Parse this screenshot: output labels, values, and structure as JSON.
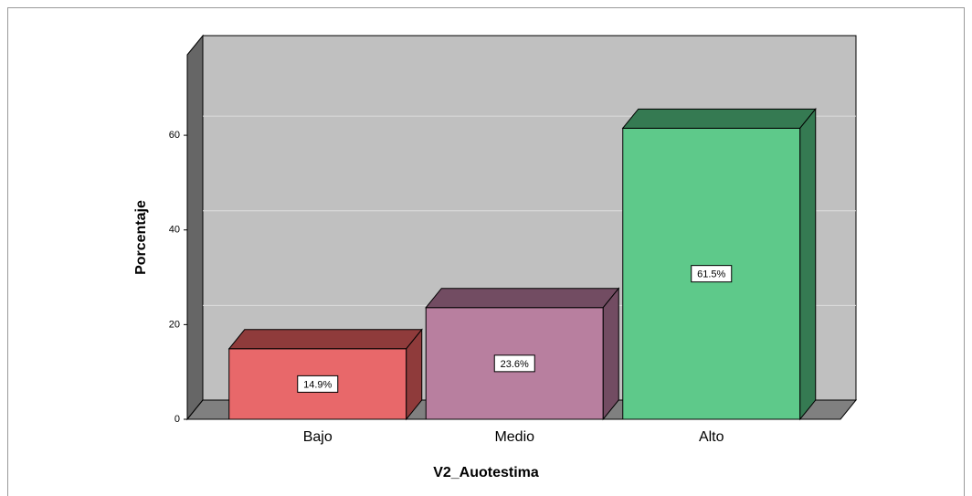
{
  "chart_data": {
    "type": "bar3d",
    "x_label": "V2_Auotestima",
    "y_label": "Porcentaje",
    "categories": [
      "Bajo",
      "Medio",
      "Alto"
    ],
    "values": [
      14.9,
      23.6,
      61.5
    ],
    "value_labels": [
      "14.9%",
      "23.6%",
      "61.5%"
    ],
    "colors": [
      "#e8686a",
      "#b87f9f",
      "#5ec98a"
    ],
    "side_colors": [
      "#8f3b3b",
      "#724c62",
      "#357a52"
    ],
    "ylim": [
      0,
      77
    ],
    "yticks": [
      0,
      20,
      40,
      60
    ],
    "grid": true
  }
}
